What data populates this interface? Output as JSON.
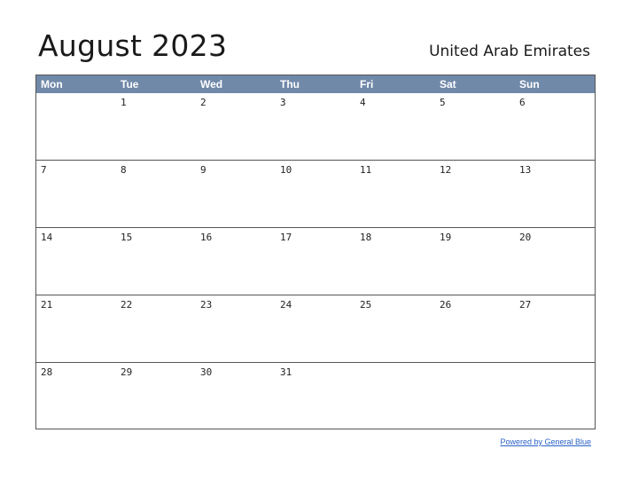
{
  "title": "August 2023",
  "country": "United Arab Emirates",
  "weekdays": [
    "Mon",
    "Tue",
    "Wed",
    "Thu",
    "Fri",
    "Sat",
    "Sun"
  ],
  "weeks": [
    [
      "",
      "1",
      "2",
      "3",
      "4",
      "5",
      "6"
    ],
    [
      "7",
      "8",
      "9",
      "10",
      "11",
      "12",
      "13"
    ],
    [
      "14",
      "15",
      "16",
      "17",
      "18",
      "19",
      "20"
    ],
    [
      "21",
      "22",
      "23",
      "24",
      "25",
      "26",
      "27"
    ],
    [
      "28",
      "29",
      "30",
      "31",
      "",
      "",
      ""
    ]
  ],
  "footer": "Powered by General Blue",
  "colors": {
    "header_bg": "#7189a9",
    "header_text": "#ffffff",
    "link": "#2a62c8"
  }
}
